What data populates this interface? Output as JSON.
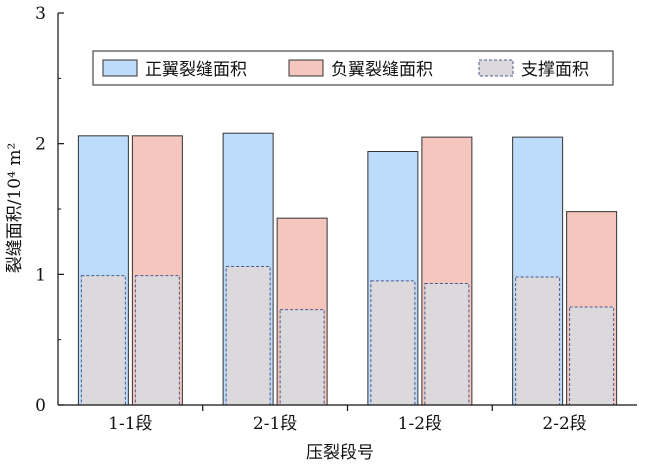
{
  "chart_data": {
    "type": "bar",
    "title": "",
    "xlabel": "压裂段号",
    "ylabel": "裂缝面积/10⁴ m²",
    "ylim": [
      0,
      3
    ],
    "yticks": [
      0,
      1,
      2,
      3
    ],
    "categories": [
      "1-1段",
      "2-1段",
      "1-2段",
      "2-2段"
    ],
    "series": [
      {
        "name": "正翼裂缝面积",
        "values": [
          2.06,
          2.08,
          1.94,
          2.05
        ]
      },
      {
        "name": "负翼裂缝面积",
        "values": [
          2.06,
          1.43,
          2.05,
          1.48
        ]
      }
    ],
    "overlay_series": {
      "name": "支撑面积",
      "values": [
        [
          0.99,
          0.99
        ],
        [
          1.06,
          0.73
        ],
        [
          0.95,
          0.93
        ],
        [
          0.98,
          0.75
        ]
      ]
    },
    "legend": {
      "position": "top",
      "entries": [
        "正翼裂缝面积",
        "负翼裂缝面积",
        "支撑面积"
      ]
    },
    "colors": {
      "positive_fill": "#bddbfa",
      "negative_fill": "#f5c6bd",
      "support_fill": "#dcd9dc",
      "support_border": "#4a5a90"
    }
  }
}
